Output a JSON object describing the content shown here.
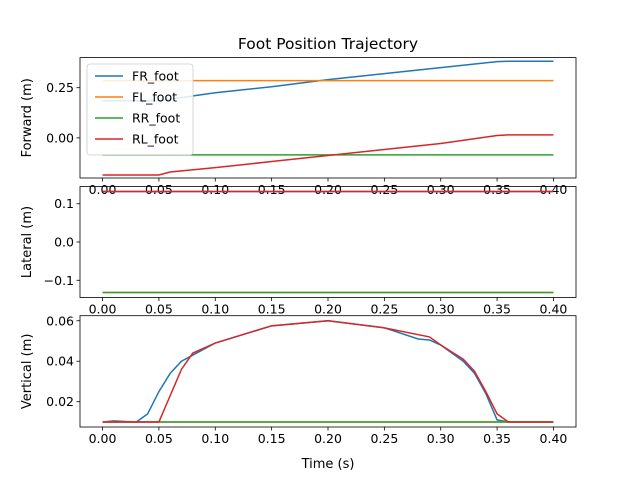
{
  "chart_data": {
    "type": "line",
    "title": "Foot Position Trajectory",
    "xlabel": "Time (s)",
    "xlim": [
      -0.02,
      0.42
    ],
    "xticks": [
      "0.00",
      "0.05",
      "0.10",
      "0.15",
      "0.20",
      "0.25",
      "0.30",
      "0.35",
      "0.40"
    ],
    "xtick_values": [
      0,
      0.05,
      0.1,
      0.15,
      0.2,
      0.25,
      0.3,
      0.35,
      0.4
    ],
    "legend": {
      "position": "upper-left",
      "entries": [
        "FR_foot",
        "FL_foot",
        "RR_foot",
        "RL_foot"
      ]
    },
    "colors": {
      "FR_foot": "#1f77b4",
      "FL_foot": "#ff7f0e",
      "RR_foot": "#2ca02c",
      "RL_foot": "#d62728"
    },
    "panels": [
      {
        "ylabel": "Forward (m)",
        "ylim": [
          -0.2,
          0.4
        ],
        "yticks": [
          "0.25",
          "0.00"
        ],
        "ytick_values": [
          0.25,
          0.0
        ],
        "series": [
          {
            "name": "FR_foot",
            "x": [
              0,
              0.05,
              0.1,
              0.15,
              0.2,
              0.25,
              0.3,
              0.35,
              0.36,
              0.4
            ],
            "y": [
              0.185,
              0.185,
              0.225,
              0.255,
              0.29,
              0.32,
              0.35,
              0.38,
              0.382,
              0.382
            ]
          },
          {
            "name": "FL_foot",
            "x": [
              0,
              0.4
            ],
            "y": [
              0.285,
              0.285
            ]
          },
          {
            "name": "RR_foot",
            "x": [
              0,
              0.4
            ],
            "y": [
              -0.085,
              -0.085
            ]
          },
          {
            "name": "RL_foot",
            "x": [
              0,
              0.05,
              0.06,
              0.1,
              0.15,
              0.2,
              0.25,
              0.3,
              0.35,
              0.36,
              0.4
            ],
            "y": [
              -0.185,
              -0.185,
              -0.17,
              -0.148,
              -0.118,
              -0.088,
              -0.058,
              -0.028,
              0.012,
              0.015,
              0.015
            ]
          }
        ]
      },
      {
        "ylabel": "Lateral (m)",
        "ylim": [
          -0.145,
          0.145
        ],
        "yticks": [
          "0.1",
          "0.0",
          "−0.1"
        ],
        "ytick_values": [
          0.1,
          0.0,
          -0.1
        ],
        "series": [
          {
            "name": "FR_foot",
            "x": [
              0,
              0.4
            ],
            "y": [
              0.132,
              0.132
            ]
          },
          {
            "name": "FL_foot",
            "x": [
              0,
              0.4
            ],
            "y": [
              -0.132,
              -0.132
            ]
          },
          {
            "name": "RR_foot",
            "x": [
              0,
              0.4
            ],
            "y": [
              -0.132,
              -0.132
            ]
          },
          {
            "name": "RL_foot",
            "x": [
              0,
              0.4
            ],
            "y": [
              0.132,
              0.132
            ]
          }
        ]
      },
      {
        "ylabel": "Vertical (m)",
        "ylim": [
          0.0075,
          0.0625
        ],
        "yticks": [
          "0.06",
          "0.04",
          "0.02"
        ],
        "ytick_values": [
          0.06,
          0.04,
          0.02
        ],
        "series": [
          {
            "name": "FR_foot",
            "x": [
              0,
              0.01,
              0.03,
              0.04,
              0.05,
              0.06,
              0.07,
              0.08,
              0.1,
              0.15,
              0.2,
              0.25,
              0.28,
              0.29,
              0.3,
              0.32,
              0.33,
              0.34,
              0.35,
              0.36,
              0.4
            ],
            "y": [
              0.01,
              0.0105,
              0.01,
              0.014,
              0.025,
              0.034,
              0.04,
              0.043,
              0.049,
              0.0575,
              0.06,
              0.0565,
              0.051,
              0.0505,
              0.048,
              0.04,
              0.034,
              0.024,
              0.011,
              0.01,
              0.01
            ]
          },
          {
            "name": "FL_foot",
            "x": [
              0,
              0.4
            ],
            "y": [
              0.01,
              0.01
            ]
          },
          {
            "name": "RR_foot",
            "x": [
              0,
              0.4
            ],
            "y": [
              0.01,
              0.01
            ]
          },
          {
            "name": "RL_foot",
            "x": [
              0,
              0.05,
              0.06,
              0.07,
              0.08,
              0.1,
              0.15,
              0.2,
              0.25,
              0.29,
              0.3,
              0.32,
              0.33,
              0.34,
              0.35,
              0.36,
              0.4
            ],
            "y": [
              0.01,
              0.01,
              0.023,
              0.036,
              0.044,
              0.049,
              0.0575,
              0.06,
              0.0565,
              0.052,
              0.048,
              0.041,
              0.035,
              0.025,
              0.014,
              0.01,
              0.01
            ]
          }
        ]
      }
    ]
  }
}
